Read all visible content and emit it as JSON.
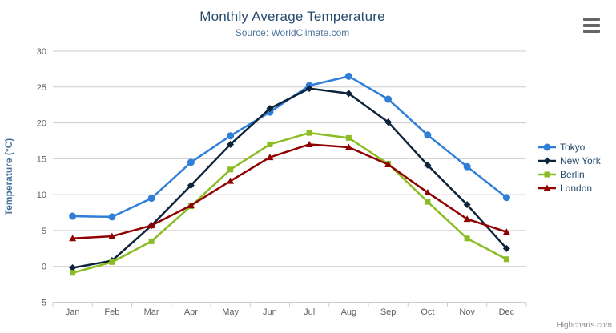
{
  "toolbar": {
    "menu_icon": "hamburger-icon"
  },
  "credits": {
    "text": "Highcharts.com"
  },
  "chart_data": {
    "type": "line",
    "title": "Monthly Average Temperature",
    "subtitle": "Source: WorldClimate.com",
    "xlabel": "",
    "ylabel": "Temperature (°C)",
    "ylim": [
      -5,
      30
    ],
    "ytick_step": 5,
    "grid": true,
    "legend_position": "right",
    "categories": [
      "Jan",
      "Feb",
      "Mar",
      "Apr",
      "May",
      "Jun",
      "Jul",
      "Aug",
      "Sep",
      "Oct",
      "Nov",
      "Dec"
    ],
    "series": [
      {
        "name": "Tokyo",
        "color": "#2f7ed8",
        "marker": "circle",
        "values": [
          7.0,
          6.9,
          9.5,
          14.5,
          18.2,
          21.5,
          25.2,
          26.5,
          23.3,
          18.3,
          13.9,
          9.6
        ]
      },
      {
        "name": "New York",
        "color": "#0d233a",
        "marker": "diamond",
        "values": [
          -0.2,
          0.8,
          5.7,
          11.3,
          17.0,
          22.0,
          24.8,
          24.1,
          20.1,
          14.1,
          8.6,
          2.5
        ]
      },
      {
        "name": "Berlin",
        "color": "#8bbc21",
        "marker": "square",
        "values": [
          -0.9,
          0.6,
          3.5,
          8.4,
          13.5,
          17.0,
          18.6,
          17.9,
          14.3,
          9.0,
          3.9,
          1.0
        ]
      },
      {
        "name": "London",
        "color": "#910000",
        "marker": "triangle",
        "values": [
          3.9,
          4.2,
          5.7,
          8.5,
          11.9,
          15.2,
          17.0,
          16.6,
          14.2,
          10.3,
          6.6,
          4.8
        ]
      }
    ],
    "colors": {
      "grid_line": "#cccccc",
      "axis_line": "#c0d0e0",
      "tick_label": "#606060"
    }
  }
}
